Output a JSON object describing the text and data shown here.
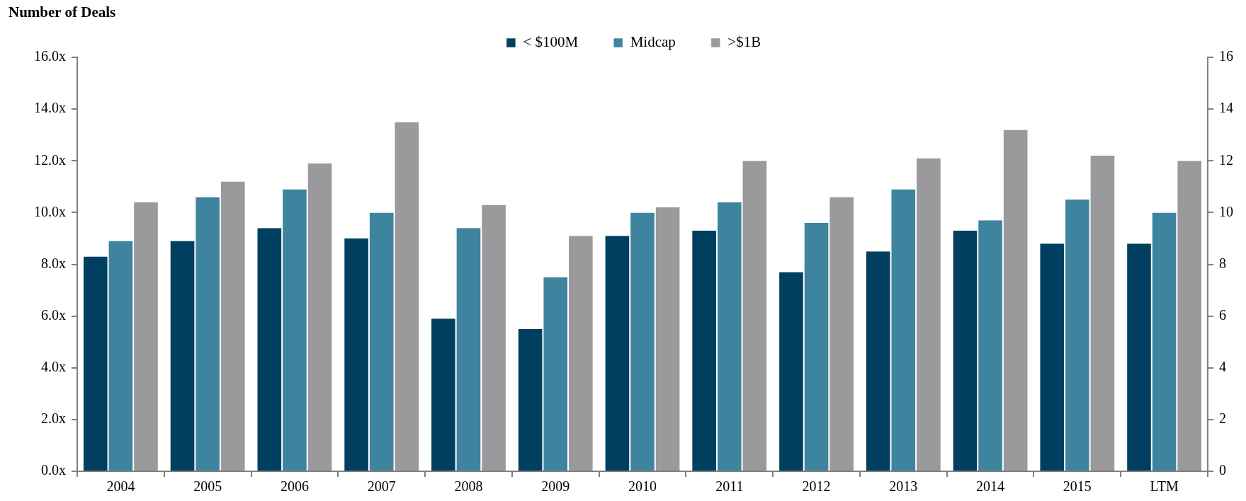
{
  "chart_data": {
    "type": "bar",
    "ylabel": "Number of Deals",
    "categories": [
      "2004",
      "2005",
      "2006",
      "2007",
      "2008",
      "2009",
      "2010",
      "2011",
      "2012",
      "2013",
      "2014",
      "2015",
      "LTM"
    ],
    "series": [
      {
        "name": "< $100M",
        "color": "#003f5f",
        "values": [
          8.3,
          8.9,
          9.4,
          9.0,
          5.9,
          5.5,
          9.1,
          9.3,
          7.7,
          8.5,
          9.3,
          8.8,
          8.8
        ]
      },
      {
        "name": "Midcap",
        "color": "#3f849e",
        "values": [
          8.9,
          10.6,
          10.9,
          10.0,
          9.4,
          7.5,
          10.0,
          10.4,
          9.6,
          10.9,
          9.7,
          10.5,
          10.0
        ]
      },
      {
        "name": ">$1B",
        "color": "#9a9a9c",
        "values": [
          10.4,
          11.2,
          11.9,
          13.5,
          10.3,
          9.1,
          10.2,
          12.0,
          10.6,
          12.1,
          13.2,
          12.2,
          12.0
        ]
      }
    ],
    "ylim": [
      0,
      16
    ],
    "yticks": [
      {
        "value": 0,
        "label": "0.0x"
      },
      {
        "value": 2,
        "label": "2.0x"
      },
      {
        "value": 4,
        "label": "4.0x"
      },
      {
        "value": 6,
        "label": "6.0x"
      },
      {
        "value": 8,
        "label": "8.0x"
      },
      {
        "value": 10,
        "label": "10.0x"
      },
      {
        "value": 12,
        "label": "12.0x"
      },
      {
        "value": 14,
        "label": "14.0x"
      },
      {
        "value": 16,
        "label": "16.0x"
      }
    ],
    "y2lim": [
      0,
      16
    ],
    "y2ticks": [
      0,
      2,
      4,
      6,
      8,
      10,
      12,
      14,
      16
    ],
    "grid": false,
    "legend": "top"
  }
}
